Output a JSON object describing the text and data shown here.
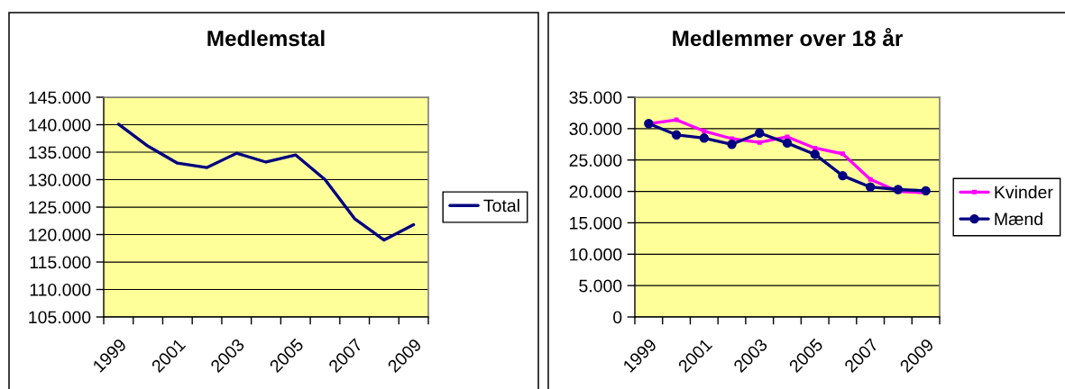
{
  "chart_data": [
    {
      "type": "line",
      "title": "Medlemstal",
      "categories": [
        "1999",
        null,
        "2001",
        null,
        "2003",
        null,
        "2005",
        null,
        "2007",
        null,
        "2009"
      ],
      "series": [
        {
          "name": "Total",
          "color": "#000080",
          "values": [
            140100,
            136100,
            133000,
            132200,
            134800,
            133200,
            134500,
            130000,
            122900,
            119000,
            121800
          ]
        }
      ],
      "ylim": [
        105000,
        145000
      ],
      "yticks": [
        {
          "value": 105000,
          "label": "105.000"
        },
        {
          "value": 110000,
          "label": "110.000"
        },
        {
          "value": 115000,
          "label": "115.000"
        },
        {
          "value": 120000,
          "label": "120.000"
        },
        {
          "value": 125000,
          "label": "125.000"
        },
        {
          "value": 130000,
          "label": "130.000"
        },
        {
          "value": 135000,
          "label": "135.000"
        },
        {
          "value": 140000,
          "label": "140.000"
        },
        {
          "value": 145000,
          "label": "145.000"
        }
      ],
      "grid": "y",
      "legend": "right"
    },
    {
      "type": "line",
      "title": "Medlemmer over 18 år",
      "categories": [
        "1999",
        null,
        "2001",
        null,
        "2003",
        null,
        "2005",
        null,
        "2007",
        null,
        "2009"
      ],
      "series": [
        {
          "name": "Kvinder",
          "color": "#ff00ff",
          "marker": "square",
          "values": [
            30800,
            31400,
            29600,
            28400,
            27800,
            28700,
            26900,
            26000,
            21900,
            20000,
            19800
          ]
        },
        {
          "name": "Mænd",
          "color": "#000080",
          "marker": "circle",
          "values": [
            30800,
            29000,
            28500,
            27500,
            29300,
            27700,
            25900,
            22500,
            20700,
            20300,
            20100
          ]
        }
      ],
      "ylim": [
        0,
        35000
      ],
      "yticks": [
        0,
        {
          "value": 5000,
          "label": "5.000"
        },
        {
          "value": 10000,
          "label": "10.000"
        },
        {
          "value": 15000,
          "label": "15.000"
        },
        {
          "value": 20000,
          "label": "20.000"
        },
        {
          "value": 25000,
          "label": "25.000"
        },
        {
          "value": 30000,
          "label": "30.000"
        },
        {
          "value": 35000,
          "label": "35.000"
        }
      ],
      "grid": "y",
      "legend": "right"
    }
  ]
}
